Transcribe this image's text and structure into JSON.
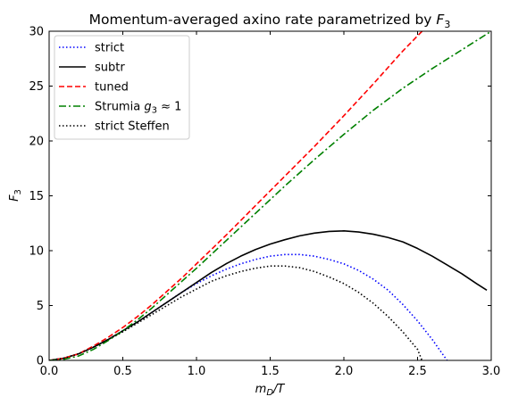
{
  "chart_data": {
    "type": "line",
    "title": "Momentum-averaged axino rate parametrized by F3",
    "title_parts": [
      "Momentum-averaged axino rate parametrized by ",
      "F",
      "3"
    ],
    "xlabel": "mD/T",
    "xlabel_parts": [
      "m",
      "D",
      "/T"
    ],
    "ylabel": "F3",
    "ylabel_parts": [
      "F",
      "3"
    ],
    "xlim": [
      0.0,
      3.0
    ],
    "ylim": [
      0,
      30
    ],
    "x_ticks": [
      "0.0",
      "0.5",
      "1.0",
      "1.5",
      "2.0",
      "2.5",
      "3.0"
    ],
    "y_ticks": [
      "0",
      "5",
      "10",
      "15",
      "20",
      "25",
      "30"
    ],
    "grid": false,
    "legend_position": "upper-left",
    "series": [
      {
        "name": "strict",
        "color": "#0000ff",
        "dash": "dotted",
        "x": [
          0.0,
          0.1,
          0.2,
          0.3,
          0.4,
          0.5,
          0.6,
          0.7,
          0.8,
          0.9,
          1.0,
          1.1,
          1.2,
          1.3,
          1.4,
          1.5,
          1.6,
          1.7,
          1.8,
          1.9,
          2.0,
          2.1,
          2.2,
          2.3,
          2.4,
          2.5,
          2.6,
          2.7
        ],
        "y": [
          0.0,
          0.2,
          0.6,
          1.2,
          1.9,
          2.7,
          3.5,
          4.4,
          5.3,
          6.2,
          7.0,
          7.7,
          8.3,
          8.8,
          9.2,
          9.5,
          9.65,
          9.65,
          9.5,
          9.2,
          8.8,
          8.2,
          7.4,
          6.4,
          5.1,
          3.6,
          1.9,
          0.0
        ]
      },
      {
        "name": "subtr",
        "color": "#000000",
        "dash": "solid",
        "x": [
          0.0,
          0.1,
          0.2,
          0.3,
          0.4,
          0.5,
          0.6,
          0.7,
          0.8,
          0.9,
          1.0,
          1.1,
          1.2,
          1.3,
          1.4,
          1.5,
          1.6,
          1.7,
          1.8,
          1.9,
          2.0,
          2.1,
          2.2,
          2.3,
          2.4,
          2.5,
          2.6,
          2.7,
          2.8,
          2.9,
          2.97
        ],
        "y": [
          0.0,
          0.2,
          0.6,
          1.2,
          1.9,
          2.7,
          3.5,
          4.4,
          5.3,
          6.2,
          7.1,
          8.0,
          8.8,
          9.5,
          10.1,
          10.6,
          11.0,
          11.35,
          11.6,
          11.75,
          11.8,
          11.7,
          11.5,
          11.2,
          10.8,
          10.2,
          9.5,
          8.7,
          7.9,
          7.0,
          6.4
        ]
      },
      {
        "name": "tuned",
        "color": "#ff0000",
        "dash": "dashed",
        "x": [
          0.0,
          0.1,
          0.2,
          0.3,
          0.4,
          0.5,
          0.6,
          0.7,
          0.8,
          0.9,
          1.0,
          1.2,
          1.4,
          1.6,
          1.8,
          2.0,
          2.2,
          2.4,
          2.56
        ],
        "y": [
          0.0,
          0.2,
          0.6,
          1.3,
          2.1,
          3.0,
          4.0,
          5.1,
          6.3,
          7.5,
          8.8,
          11.4,
          14.1,
          16.8,
          19.5,
          22.3,
          25.2,
          28.2,
          30.4
        ]
      },
      {
        "name": "Strumia g3 ≈ 1",
        "name_parts": [
          "Strumia ",
          "g",
          "3",
          " ≈ 1"
        ],
        "color": "#008000",
        "dash": "dashdot",
        "x": [
          0.0,
          0.1,
          0.2,
          0.3,
          0.4,
          0.5,
          0.6,
          0.7,
          0.8,
          0.9,
          1.0,
          1.2,
          1.4,
          1.6,
          1.8,
          2.0,
          2.2,
          2.4,
          2.6,
          2.8,
          3.0
        ],
        "y": [
          0.0,
          0.1,
          0.4,
          1.0,
          1.8,
          2.7,
          3.7,
          4.8,
          6.0,
          7.2,
          8.4,
          10.9,
          13.4,
          15.9,
          18.3,
          20.6,
          22.8,
          24.8,
          26.6,
          28.3,
          30.0
        ]
      },
      {
        "name": "strict Steffen",
        "color": "#000000",
        "dash": "dotted",
        "x": [
          0.0,
          0.1,
          0.2,
          0.3,
          0.4,
          0.5,
          0.6,
          0.7,
          0.8,
          0.9,
          1.0,
          1.1,
          1.2,
          1.3,
          1.4,
          1.5,
          1.6,
          1.7,
          1.8,
          1.9,
          2.0,
          2.1,
          2.2,
          2.3,
          2.4,
          2.5,
          2.53
        ],
        "y": [
          0.0,
          0.2,
          0.6,
          1.2,
          1.9,
          2.6,
          3.4,
          4.2,
          5.0,
          5.8,
          6.5,
          7.2,
          7.7,
          8.1,
          8.4,
          8.6,
          8.6,
          8.45,
          8.1,
          7.6,
          7.0,
          6.2,
          5.2,
          4.0,
          2.6,
          1.0,
          0.0
        ]
      }
    ]
  }
}
